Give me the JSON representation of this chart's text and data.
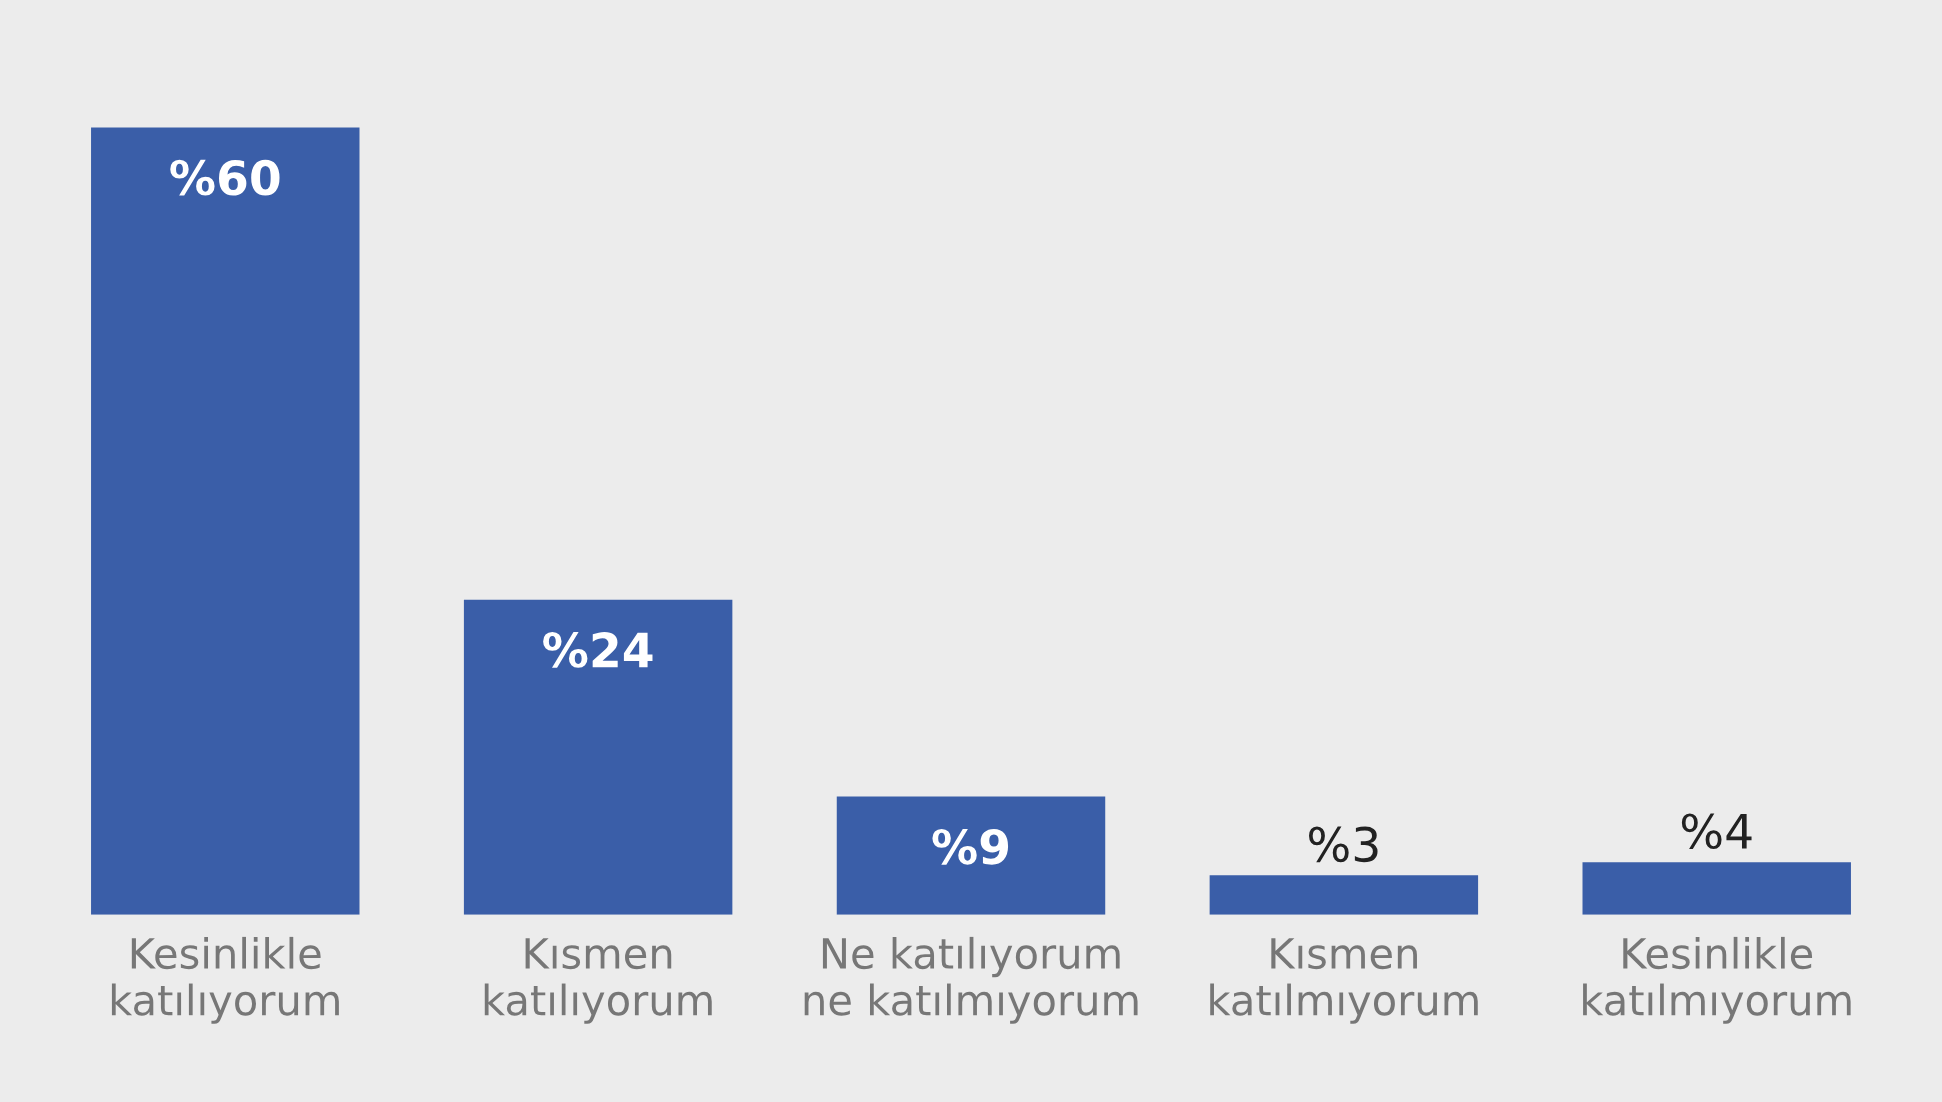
{
  "chart_data": {
    "type": "bar",
    "categories": [
      "Kesinlikle katılıyorum",
      "Kısmen katılıyorum",
      "Ne katılıyorum ne katılmıyorum",
      "Kısmen katılmıyorum",
      "Kesinlikle katılmıyorum"
    ],
    "values": [
      60,
      24,
      9,
      3,
      4
    ],
    "value_labels": [
      "%60",
      "%24",
      "%9",
      "%3",
      "%4"
    ],
    "color": "#3a5ea8",
    "grid": false,
    "legend": false
  }
}
